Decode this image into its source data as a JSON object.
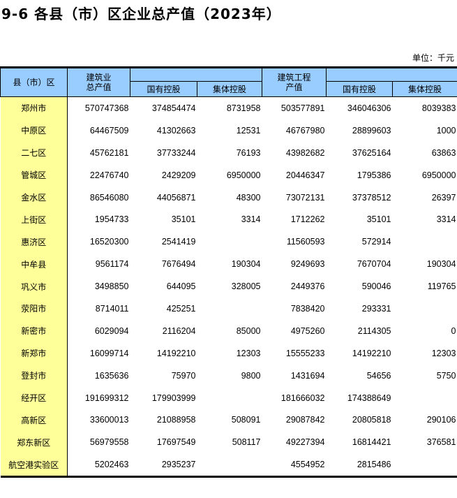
{
  "title": "9-6 各县（市）区企业总产值（2023年）",
  "unit": "单位：千元",
  "headers": {
    "region": "县（市）区",
    "total1": "建筑业",
    "total2": "总产值",
    "state": "国有控股",
    "collective": "集体控股",
    "eng1": "建筑工程",
    "eng2": "产值",
    "state2": "国有控股",
    "collective2": "集体控股"
  },
  "rows": [
    [
      "郑州市",
      "570747368",
      "374854474",
      "8731958",
      "503577891",
      "346046306",
      "8039383"
    ],
    [
      "中原区",
      "64467509",
      "41302663",
      "12531",
      "46767980",
      "28899603",
      "1000"
    ],
    [
      "二七区",
      "45762181",
      "37733244",
      "76193",
      "43982682",
      "37625164",
      "63863"
    ],
    [
      "管城区",
      "22476740",
      "2429209",
      "6950000",
      "20446347",
      "1795386",
      "6950000"
    ],
    [
      "金水区",
      "86546080",
      "44056871",
      "48300",
      "73072131",
      "37378512",
      "26397"
    ],
    [
      "上街区",
      "1954733",
      "35101",
      "3314",
      "1712262",
      "35101",
      "3314"
    ],
    [
      "惠济区",
      "16520300",
      "2541419",
      "",
      "11560593",
      "572914",
      ""
    ],
    [
      "中牟县",
      "9561174",
      "7676494",
      "190304",
      "9249693",
      "7670704",
      "190304"
    ],
    [
      "巩义市",
      "3498850",
      "644095",
      "328005",
      "2449376",
      "590046",
      "119765"
    ],
    [
      "荥阳市",
      "8714011",
      "425251",
      "",
      "7838420",
      "293331",
      ""
    ],
    [
      "新密市",
      "6029094",
      "2116204",
      "85000",
      "4975260",
      "2114305",
      "0"
    ],
    [
      "新郑市",
      "16099714",
      "14192210",
      "12303",
      "15555233",
      "14192210",
      "12303"
    ],
    [
      "登封市",
      "1635636",
      "75970",
      "9800",
      "1431694",
      "54656",
      "5750"
    ],
    [
      "经开区",
      "191699312",
      "179903999",
      "",
      "181666032",
      "174388649",
      ""
    ],
    [
      "高新区",
      "33600013",
      "21088958",
      "508091",
      "29087842",
      "20805818",
      "290106"
    ],
    [
      "郑东新区",
      "56979558",
      "17697549",
      "508117",
      "49227394",
      "16814421",
      "376581"
    ],
    [
      "航空港实验区",
      "5202463",
      "2935237",
      "",
      "4554952",
      "2815486",
      ""
    ]
  ]
}
